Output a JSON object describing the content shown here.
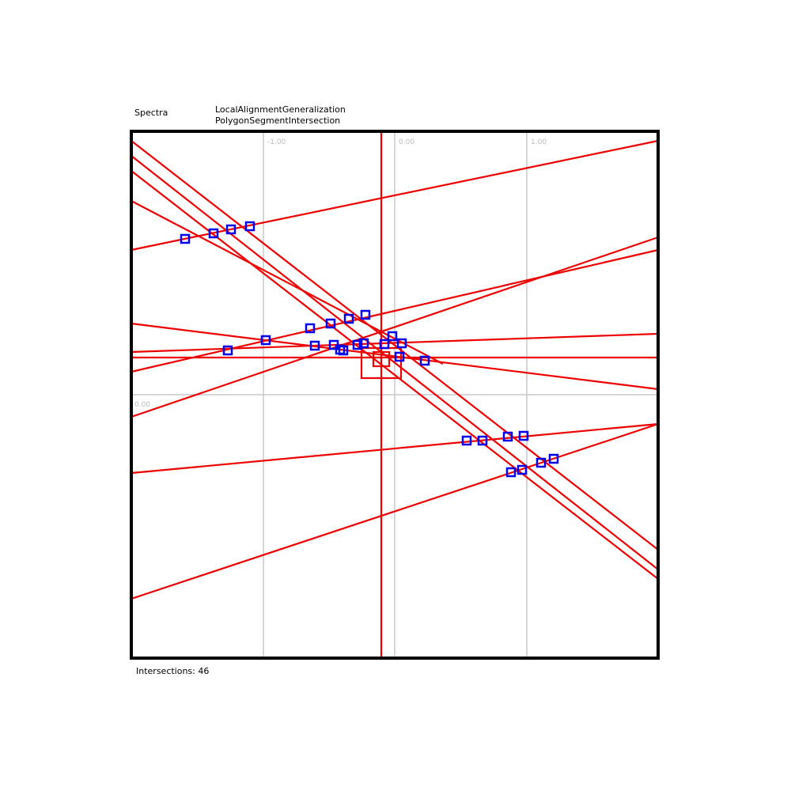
{
  "header": {
    "left": "Spectra",
    "right_line1": "LocalAlignmentGeneralization",
    "right_line2": "PolygonSegmentIntersection"
  },
  "axis": {
    "x_ticks": [
      "-1.00",
      "0.00",
      "1.00"
    ],
    "y_tick": "0.00"
  },
  "footer": "Intersections: 46"
}
